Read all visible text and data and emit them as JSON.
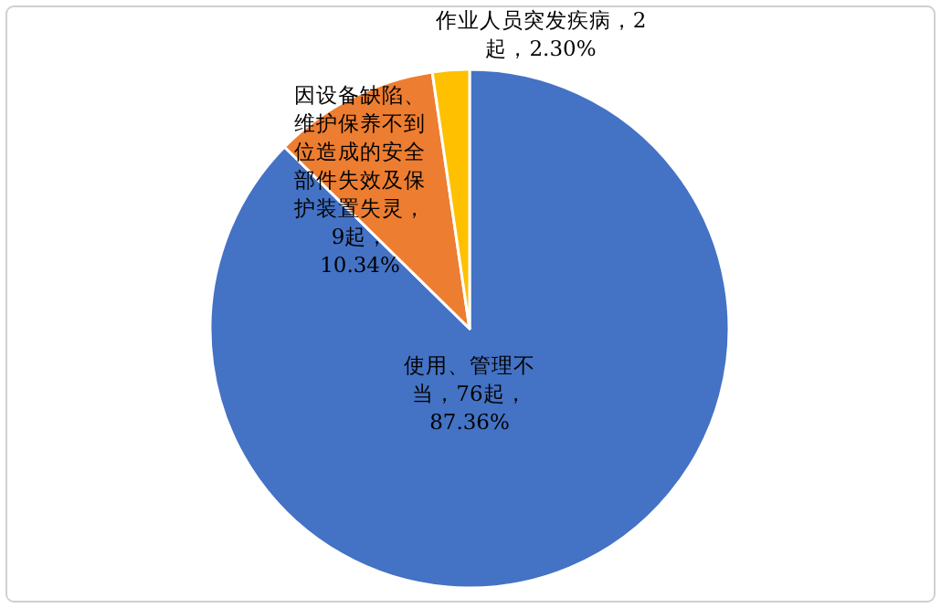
{
  "chart_data": {
    "type": "pie",
    "categories": [
      "使用、管理不当",
      "因设备缺陷、维护保养不到位造成的安全部件失效及保护装置失灵",
      "作业人员突发疾病"
    ],
    "values": [
      76,
      9,
      2
    ],
    "value_labels": [
      "，76起，87.36%",
      "，9起，10.34%",
      "，2起，2.30%"
    ],
    "colors": [
      "#4472c4",
      "#ed7d31",
      "#ffc000"
    ]
  }
}
